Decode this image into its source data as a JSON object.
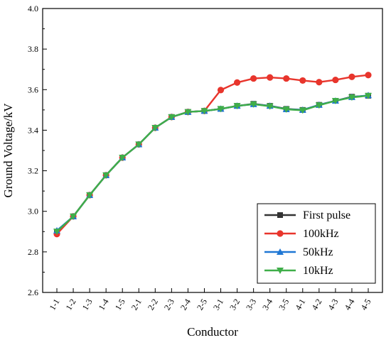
{
  "chart_data": {
    "type": "line",
    "title": "",
    "xlabel": "Conductor",
    "ylabel": "Ground Voltage/kV",
    "ylim": [
      2.6,
      4.0
    ],
    "yticks": [
      "2.6",
      "2.8",
      "3.0",
      "3.2",
      "3.4",
      "3.6",
      "3.8",
      "4.0"
    ],
    "categories": [
      "1-1",
      "1-2",
      "1-3",
      "1-4",
      "1-5",
      "2-1",
      "2-2",
      "2-3",
      "2-4",
      "2-5",
      "3-1",
      "3-2",
      "3-3",
      "3-4",
      "3-5",
      "4-1",
      "4-2",
      "4-3",
      "4-4",
      "4-5"
    ],
    "legend_position": "bottom-right",
    "grid": false,
    "series": [
      {
        "name": "First pulse",
        "color": "#333333",
        "marker": "square",
        "values": [
          2.9,
          2.975,
          3.08,
          3.178,
          3.265,
          3.33,
          3.412,
          3.465,
          3.49,
          3.495,
          3.505,
          3.52,
          3.53,
          3.52,
          3.505,
          3.5,
          3.525,
          3.545,
          3.565,
          3.57
        ]
      },
      {
        "name": "100kHz",
        "color": "#e8352c",
        "marker": "circle",
        "values": [
          2.888,
          2.975,
          3.08,
          3.178,
          3.265,
          3.33,
          3.412,
          3.465,
          3.49,
          3.495,
          3.598,
          3.635,
          3.655,
          3.66,
          3.655,
          3.645,
          3.637,
          3.648,
          3.663,
          3.672
        ]
      },
      {
        "name": "50kHz",
        "color": "#1f77d4",
        "marker": "triangle-up",
        "values": [
          2.905,
          2.975,
          3.08,
          3.178,
          3.265,
          3.33,
          3.412,
          3.465,
          3.49,
          3.495,
          3.505,
          3.52,
          3.528,
          3.52,
          3.503,
          3.5,
          3.525,
          3.545,
          3.563,
          3.572
        ]
      },
      {
        "name": "10kHz",
        "color": "#3fae49",
        "marker": "triangle-down",
        "values": [
          2.9,
          2.975,
          3.08,
          3.178,
          3.265,
          3.33,
          3.412,
          3.465,
          3.49,
          3.495,
          3.505,
          3.52,
          3.528,
          3.518,
          3.503,
          3.498,
          3.523,
          3.545,
          3.562,
          3.57
        ]
      }
    ]
  }
}
